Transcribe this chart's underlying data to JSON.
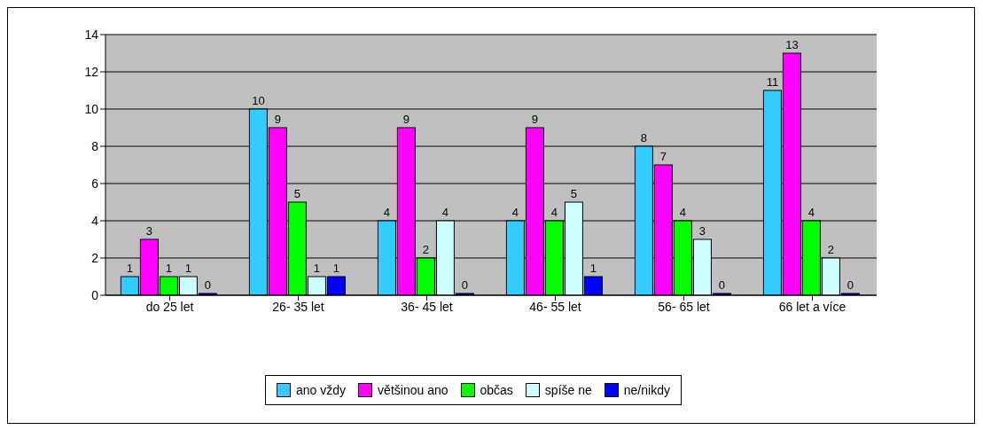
{
  "chart_data": {
    "type": "bar",
    "categories": [
      "do 25 let",
      "26- 35 let",
      "36- 45 let",
      "46- 55 let",
      "56- 65 let",
      "66 let a více"
    ],
    "series": [
      {
        "name": "ano vždy",
        "color": "#33ccff",
        "values": [
          1,
          10,
          4,
          4,
          8,
          11
        ]
      },
      {
        "name": "většinou ano",
        "color": "#ff00ff",
        "values": [
          3,
          9,
          9,
          9,
          7,
          13
        ]
      },
      {
        "name": "občas",
        "color": "#00ff00",
        "values": [
          1,
          5,
          2,
          4,
          4,
          4
        ]
      },
      {
        "name": "spíše ne",
        "color": "#ccffff",
        "values": [
          1,
          1,
          4,
          5,
          3,
          2
        ]
      },
      {
        "name": "ne/nikdy",
        "color": "#0000ff",
        "values": [
          0,
          1,
          0,
          1,
          0,
          0
        ]
      }
    ],
    "ylim": [
      0,
      14
    ],
    "yticks": [
      0,
      2,
      4,
      6,
      8,
      10,
      12,
      14
    ],
    "grid": "y",
    "legend": "bottom",
    "data_labels": true
  }
}
